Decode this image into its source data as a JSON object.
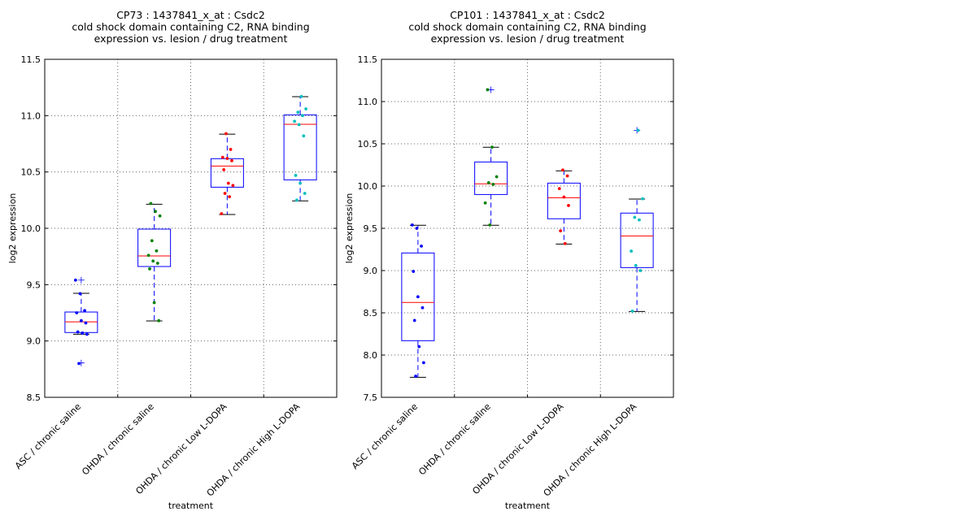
{
  "chart_data": [
    {
      "type": "box",
      "title": [
        "CP73 : 1437841_x_at : Csdc2",
        "cold shock domain containing C2, RNA binding",
        "expression vs. lesion / drug treatment"
      ],
      "xlabel": "treatment",
      "ylabel": "log2 expression",
      "ylim": [
        8.5,
        11.5
      ],
      "yticks": [
        "8.5",
        "9.0",
        "9.5",
        "10.0",
        "10.5",
        "11.0",
        "11.5"
      ],
      "grid": true,
      "categories": [
        "ASC / chronic saline",
        "OHDA / chronic saline",
        "OHDA / chronic Low L-DOPA",
        "OHDA / chronic High L-DOPA"
      ],
      "point_colors": [
        "#0000ff",
        "#008000",
        "#ff0000",
        "#00bfbf"
      ],
      "boxes": [
        {
          "whisker_low": 9.06,
          "q1": 9.075,
          "median": 9.17,
          "q3": 9.257,
          "whisker_high": 9.423,
          "outliers": [
            9.54,
            8.805
          ]
        },
        {
          "whisker_low": 9.178,
          "q1": 9.661,
          "median": 9.755,
          "q3": 9.993,
          "whisker_high": 10.214,
          "outliers": []
        },
        {
          "whisker_low": 10.123,
          "q1": 10.365,
          "median": 10.553,
          "q3": 10.618,
          "whisker_high": 10.836,
          "outliers": []
        },
        {
          "whisker_low": 10.243,
          "q1": 10.43,
          "median": 10.923,
          "q3": 11.007,
          "whisker_high": 11.168,
          "outliers": []
        }
      ],
      "points": [
        [
          9.54,
          9.42,
          9.27,
          9.25,
          9.18,
          9.16,
          9.08,
          9.07,
          9.06,
          8.8
        ],
        [
          10.22,
          10.15,
          10.11,
          9.89,
          9.8,
          9.76,
          9.71,
          9.69,
          9.64,
          9.34,
          9.18
        ],
        [
          10.84,
          10.7,
          10.63,
          10.62,
          10.6,
          10.52,
          10.4,
          10.38,
          10.31,
          10.28,
          10.13
        ],
        [
          11.17,
          11.06,
          11.03,
          11.0,
          10.95,
          10.92,
          10.82,
          10.47,
          10.4,
          10.31,
          10.25
        ]
      ]
    },
    {
      "type": "box",
      "title": [
        "CP101 : 1437841_x_at : Csdc2",
        "cold shock domain containing C2, RNA binding",
        "expression vs. lesion / drug treatment"
      ],
      "xlabel": "treatment",
      "ylabel": "log2 expression",
      "ylim": [
        7.5,
        11.5
      ],
      "yticks": [
        "7.5",
        "8.0",
        "8.5",
        "9.0",
        "9.5",
        "10.0",
        "10.5",
        "11.0",
        "11.5"
      ],
      "grid": true,
      "categories": [
        "ASC / chronic saline",
        "OHDA / chronic saline",
        "OHDA / chronic Low L-DOPA",
        "OHDA / chronic High L-DOPA"
      ],
      "point_colors": [
        "#0000ff",
        "#008000",
        "#ff0000",
        "#00bfbf"
      ],
      "boxes": [
        {
          "whisker_low": 7.737,
          "q1": 8.17,
          "median": 8.622,
          "q3": 9.208,
          "whisker_high": 9.536,
          "outliers": []
        },
        {
          "whisker_low": 9.536,
          "q1": 9.9,
          "median": 10.026,
          "q3": 10.285,
          "whisker_high": 10.459,
          "outliers": [
            11.14
          ]
        },
        {
          "whisker_low": 9.314,
          "q1": 9.613,
          "median": 9.862,
          "q3": 10.035,
          "whisker_high": 10.18,
          "outliers": []
        },
        {
          "whisker_low": 8.516,
          "q1": 9.035,
          "median": 9.41,
          "q3": 9.68,
          "whisker_high": 9.846,
          "outliers": [
            10.66
          ]
        }
      ],
      "points": [
        [
          9.54,
          9.5,
          9.29,
          8.99,
          8.69,
          8.56,
          8.41,
          8.1,
          7.91,
          7.75
        ],
        [
          11.14,
          10.46,
          10.11,
          10.04,
          10.02,
          9.8,
          9.54
        ],
        [
          10.19,
          10.12,
          9.97,
          9.87,
          9.77,
          9.47,
          9.32
        ],
        [
          10.66,
          9.85,
          9.63,
          9.6,
          9.23,
          9.06,
          9.0,
          8.52
        ]
      ]
    }
  ]
}
